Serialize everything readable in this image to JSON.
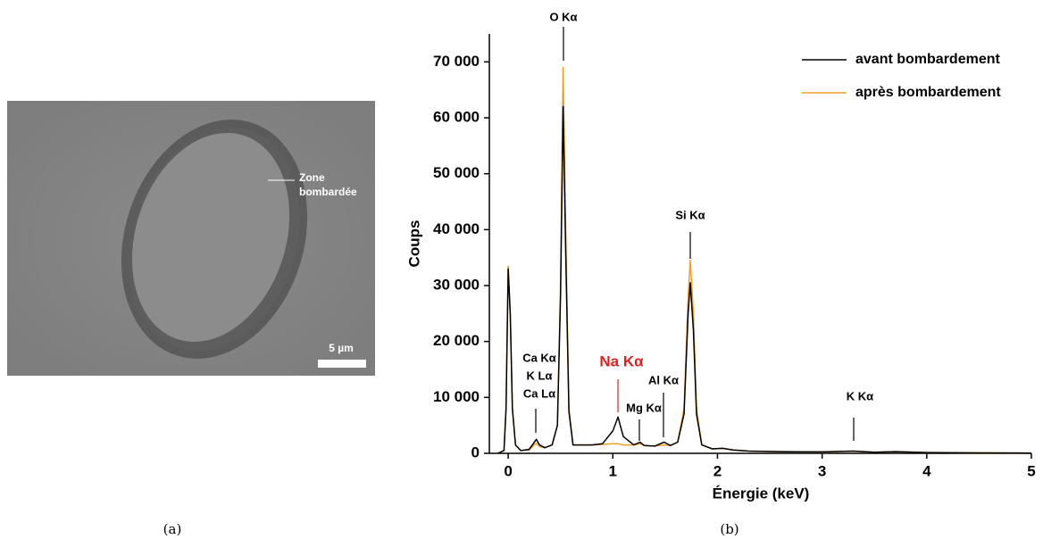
{
  "panel_a": {
    "annotation": [
      "Zone",
      "bombardée"
    ],
    "scale_bar": "5 µm",
    "caption": "(a)"
  },
  "caption_b": "(b)",
  "chart_data": {
    "type": "line",
    "x_label": "Énergie (keV)",
    "y_label": "Coups",
    "xlim": [
      -0.18,
      5
    ],
    "ylim": [
      0,
      75000
    ],
    "xticks": [
      0,
      1,
      2,
      3,
      4,
      5
    ],
    "yticks": [
      0,
      {
        "value": 10000,
        "label": "10 000"
      },
      {
        "value": 20000,
        "label": "20 000"
      },
      {
        "value": 30000,
        "label": "30 000"
      },
      {
        "value": 40000,
        "label": "40 000"
      },
      {
        "value": 50000,
        "label": "50 000"
      },
      {
        "value": 60000,
        "label": "60 000"
      },
      {
        "value": 70000,
        "label": "70 000"
      }
    ],
    "legend": "upper right",
    "annotations": [
      {
        "lines": [
          "O Kα"
        ],
        "color": "#000000"
      },
      {
        "lines": [
          "Si Kα"
        ],
        "color": "#000000"
      },
      {
        "lines": [
          "Ca Kα",
          "K Lα",
          "Ca Lα"
        ],
        "color": "#000000"
      },
      {
        "lines": [
          "Na Kα"
        ],
        "color": "#e02020"
      },
      {
        "lines": [
          "Mg Kα"
        ],
        "color": "#000000"
      },
      {
        "lines": [
          "Al Kα"
        ],
        "color": "#000000"
      },
      {
        "lines": [
          "K Kα"
        ],
        "color": "#000000"
      }
    ],
    "x": [
      -0.1,
      -0.04,
      -0.02,
      0,
      0.02,
      0.04,
      0.07,
      0.12,
      0.2,
      0.25,
      0.27,
      0.3,
      0.35,
      0.42,
      0.47,
      0.5,
      0.525,
      0.55,
      0.58,
      0.62,
      0.7,
      0.8,
      0.9,
      1.0,
      1.05,
      1.1,
      1.2,
      1.26,
      1.3,
      1.4,
      1.49,
      1.55,
      1.62,
      1.68,
      1.72,
      1.74,
      1.77,
      1.8,
      1.85,
      1.95,
      2.05,
      2.15,
      2.3,
      2.6,
      3.0,
      3.3,
      3.5,
      3.7,
      4.0,
      4.5,
      5.0
    ],
    "series": [
      {
        "name": "avant bombardement",
        "color": "#000000",
        "values": [
          0,
          500,
          8000,
          33000,
          25000,
          8000,
          1500,
          500,
          700,
          2000,
          2500,
          1500,
          1000,
          1500,
          5000,
          28000,
          62000,
          36000,
          7500,
          1500,
          1500,
          1500,
          1700,
          4000,
          6500,
          3000,
          1500,
          2000,
          1400,
          1300,
          2000,
          1400,
          2000,
          7000,
          25000,
          30500,
          22000,
          7000,
          1500,
          800,
          900,
          600,
          400,
          300,
          250,
          400,
          200,
          300,
          150,
          80,
          50
        ]
      },
      {
        "name": "après bombardement",
        "color": "#f0a020",
        "values": [
          0,
          500,
          8000,
          33500,
          25000,
          8000,
          1500,
          500,
          600,
          1500,
          1800,
          1200,
          1000,
          1500,
          5000,
          30000,
          69000,
          40000,
          8000,
          1500,
          1500,
          1500,
          1600,
          1700,
          1700,
          1500,
          1500,
          1700,
          1400,
          1300,
          1500,
          1400,
          2000,
          8000,
          28000,
          34500,
          25000,
          8000,
          1500,
          800,
          900,
          600,
          400,
          300,
          250,
          400,
          200,
          300,
          150,
          80,
          50
        ]
      }
    ]
  }
}
